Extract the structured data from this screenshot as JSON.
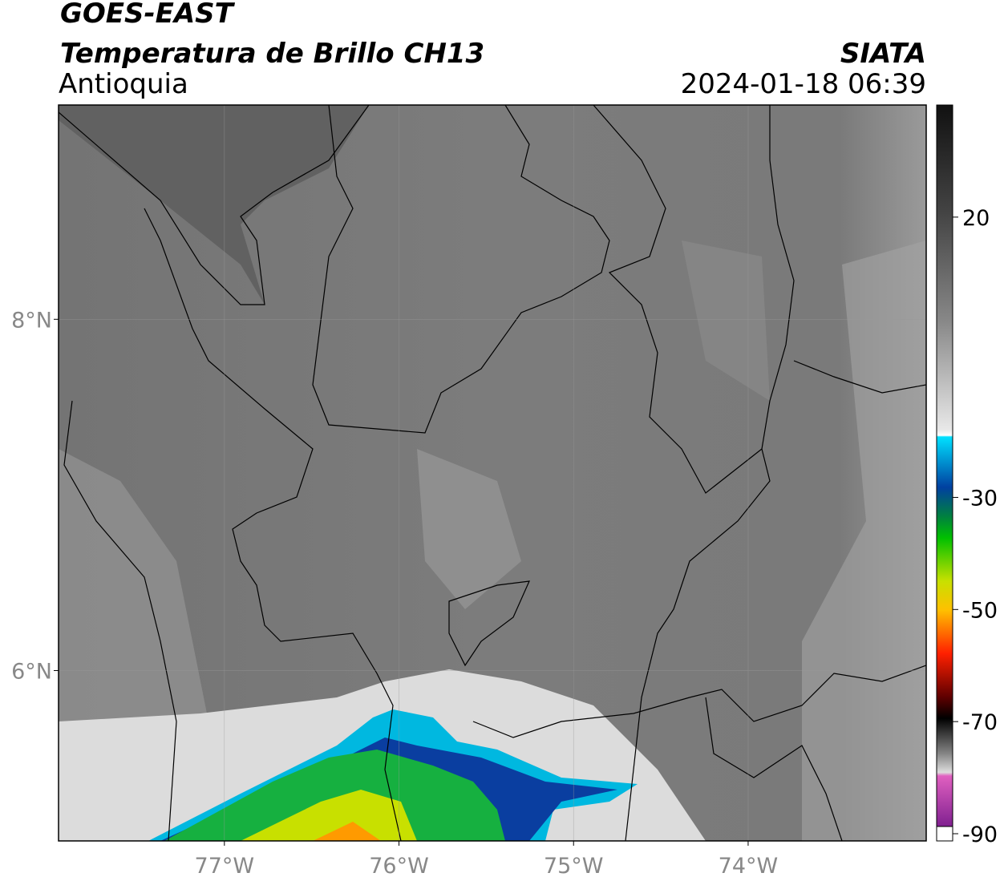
{
  "header": {
    "title": "GOES-EAST",
    "subtitle": "Temperatura de Brillo CH13",
    "region": "Antioquia",
    "source": "SIATA",
    "timestamp": "2024-01-18 06:39"
  },
  "map": {
    "xlim": [
      -77.95,
      -72.98
    ],
    "ylim": [
      5.03,
      9.22
    ],
    "xticks": [
      {
        "value": -77,
        "label": "77°W"
      },
      {
        "value": -76,
        "label": "76°W"
      },
      {
        "value": -75,
        "label": "75°W"
      },
      {
        "value": -74,
        "label": "74°W"
      }
    ],
    "yticks": [
      {
        "value": 6,
        "label": "6°N"
      },
      {
        "value": 8,
        "label": "8°N"
      }
    ],
    "grid": true
  },
  "colorbar": {
    "clim": [
      -90,
      40
    ],
    "ticks": [
      20,
      -30,
      -50,
      -70,
      -90
    ]
  }
}
